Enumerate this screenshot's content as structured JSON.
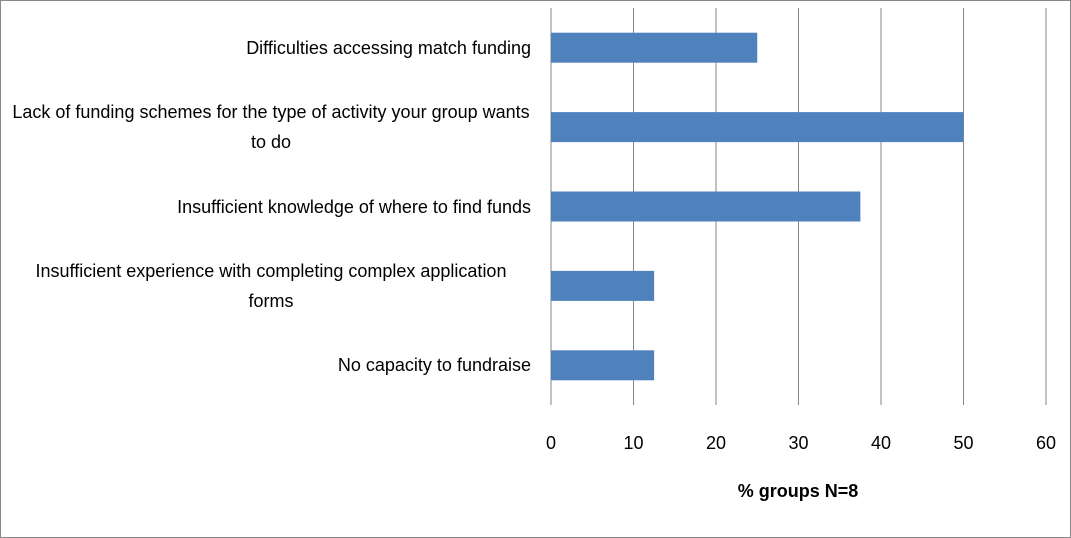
{
  "chart_data": {
    "type": "bar",
    "orientation": "horizontal",
    "categories": [
      "Difficulties accessing match funding",
      "Lack of funding schemes for the type of activity your group wants to do",
      "Insufficient knowledge of where to find funds",
      "Insufficient experience with completing complex application forms",
      "No capacity to fundraise"
    ],
    "values": [
      25,
      50,
      37.5,
      12.5,
      12.5
    ],
    "color": "#4f81bd",
    "xlabel": "% groups N=8",
    "xlim": [
      0,
      60
    ],
    "xticks": [
      0,
      10,
      20,
      30,
      40,
      50,
      60
    ],
    "grid": true
  }
}
